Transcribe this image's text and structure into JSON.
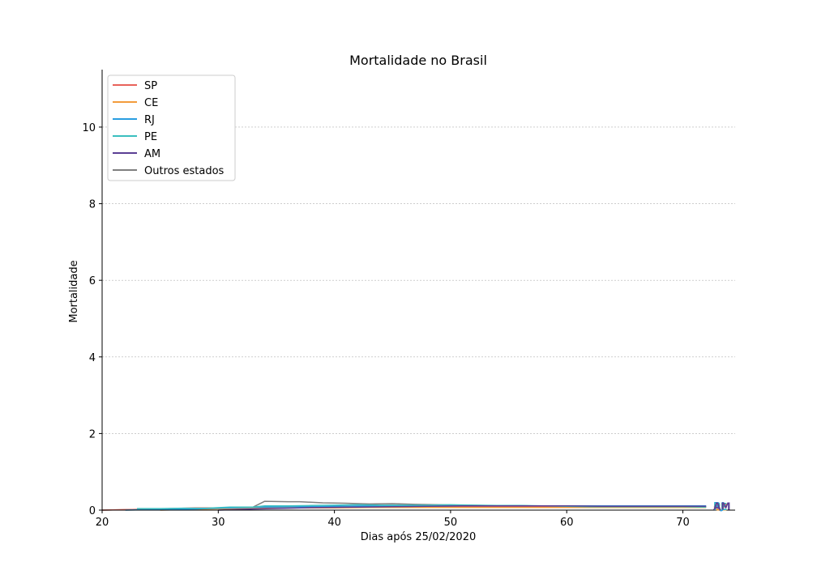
{
  "chart_data": {
    "type": "line",
    "title": "Mortalidade no Brasil",
    "xlabel": "Dias após 25/02/2020",
    "ylabel": "Mortalidade",
    "xlim": [
      20,
      74.5
    ],
    "ylim": [
      0,
      11.5
    ],
    "xticks": [
      "20",
      "30",
      "40",
      "50",
      "60",
      "70"
    ],
    "yticks": [
      "0",
      "2",
      "4",
      "6",
      "8",
      "10"
    ],
    "grid": "y-dashed",
    "legend_position": "top-left",
    "series": [
      {
        "name": "SP",
        "color": "#e8625a",
        "label": "SP",
        "x": [
          20,
          23,
          26,
          28,
          30,
          32,
          34,
          36,
          38,
          40,
          42,
          44,
          46,
          48,
          50,
          52,
          54,
          56,
          58,
          60,
          62,
          64,
          66,
          68,
          70,
          72
        ],
        "y": [
          0.0,
          0.02,
          0.04,
          0.06,
          0.06,
          0.07,
          0.08,
          0.08,
          0.08,
          0.08,
          0.09,
          0.09,
          0.09,
          0.09,
          0.09,
          0.09,
          0.09,
          0.09,
          0.09,
          0.08,
          0.08,
          0.08,
          0.08,
          0.08,
          0.08,
          0.08
        ]
      },
      {
        "name": "CE",
        "color": "#f39c3c",
        "label": "CE",
        "x": [
          25,
          28,
          31,
          34,
          37,
          40,
          43,
          46,
          49,
          52,
          55,
          58,
          61,
          64,
          67,
          70,
          72
        ],
        "y": [
          0.0,
          0.02,
          0.04,
          0.05,
          0.06,
          0.06,
          0.07,
          0.07,
          0.07,
          0.07,
          0.07,
          0.07,
          0.07,
          0.07,
          0.07,
          0.07,
          0.07
        ]
      },
      {
        "name": "RJ",
        "color": "#2a9de0",
        "label": "RJ",
        "x": [
          22,
          25,
          28,
          31,
          34,
          37,
          40,
          43,
          46,
          49,
          52,
          55,
          58,
          61,
          64,
          67,
          70,
          72
        ],
        "y": [
          0.0,
          0.02,
          0.03,
          0.06,
          0.08,
          0.09,
          0.1,
          0.11,
          0.11,
          0.11,
          0.11,
          0.11,
          0.11,
          0.11,
          0.11,
          0.11,
          0.11,
          0.11
        ]
      },
      {
        "name": "PE",
        "color": "#3bbfbf",
        "label": "PE",
        "x": [
          23,
          25,
          27,
          29,
          31,
          33,
          34,
          36,
          38,
          40,
          42,
          44,
          46,
          48,
          50,
          52,
          54,
          56,
          58,
          60,
          62,
          64,
          66,
          68,
          70,
          72
        ],
        "y": [
          0.04,
          0.04,
          0.05,
          0.05,
          0.08,
          0.08,
          0.11,
          0.11,
          0.12,
          0.13,
          0.14,
          0.13,
          0.13,
          0.13,
          0.14,
          0.13,
          0.12,
          0.12,
          0.11,
          0.1,
          0.09,
          0.09,
          0.09,
          0.09,
          0.09,
          0.08
        ]
      },
      {
        "name": "AM",
        "color": "#5b3f94",
        "label": "AM",
        "x": [
          30,
          33,
          36,
          39,
          42,
          45,
          48,
          51,
          54,
          57,
          60,
          63,
          66,
          69,
          72
        ],
        "y": [
          0.0,
          0.03,
          0.05,
          0.07,
          0.08,
          0.09,
          0.1,
          0.11,
          0.11,
          0.11,
          0.11,
          0.1,
          0.1,
          0.1,
          0.1
        ]
      },
      {
        "name": "Outros estados",
        "color": "#7f7f7f",
        "label": "",
        "x": [
          20,
          23,
          26,
          29,
          31,
          33,
          34,
          36,
          37,
          39,
          41,
          43,
          45,
          47,
          49,
          51,
          53,
          55,
          57,
          59,
          61,
          63,
          65,
          67,
          69,
          72
        ],
        "y": [
          0.0,
          0.02,
          0.04,
          0.05,
          0.06,
          0.08,
          0.23,
          0.22,
          0.22,
          0.19,
          0.18,
          0.16,
          0.17,
          0.15,
          0.14,
          0.13,
          0.12,
          0.12,
          0.11,
          0.1,
          0.1,
          0.1,
          0.1,
          0.1,
          0.1,
          0.09
        ]
      }
    ]
  }
}
